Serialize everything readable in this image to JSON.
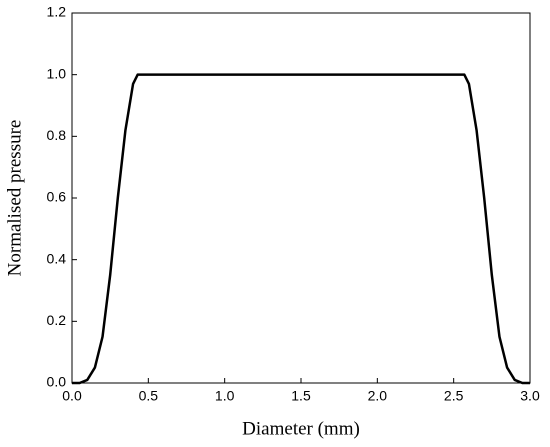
{
  "chart_data": {
    "type": "line",
    "x_label": "Diameter (mm)",
    "y_label": "Normalised pressure",
    "series": [
      {
        "name": "Normalised pressure",
        "color": "#000000",
        "x": [
          0.0,
          0.05,
          0.1,
          0.15,
          0.2,
          0.25,
          0.3,
          0.35,
          0.4,
          0.43,
          1.5,
          2.57,
          2.6,
          2.65,
          2.7,
          2.75,
          2.8,
          2.85,
          2.9,
          2.95,
          3.0
        ],
        "values": [
          0.0,
          0.0,
          0.01,
          0.05,
          0.15,
          0.35,
          0.6,
          0.82,
          0.97,
          1.0,
          1.0,
          1.0,
          0.97,
          0.82,
          0.6,
          0.35,
          0.15,
          0.05,
          0.01,
          0.0,
          0.0
        ]
      }
    ],
    "xlim": [
      0,
      3
    ],
    "ylim": [
      0,
      1.2
    ],
    "xticks": [
      {
        "value": 0,
        "label": "0.0"
      },
      0.5,
      {
        "value": 1,
        "label": "1.0"
      },
      1.5,
      {
        "value": 2,
        "label": "2.0"
      },
      2.5,
      {
        "value": 3,
        "label": "3.0"
      }
    ],
    "yticks": [
      {
        "value": 0,
        "label": "0.0"
      },
      0.2,
      0.4,
      0.6,
      0.8,
      {
        "value": 1,
        "label": "1.0"
      },
      1.2
    ],
    "grid": false
  }
}
